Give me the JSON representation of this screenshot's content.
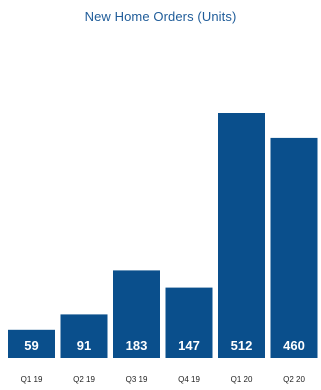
{
  "chart_data": {
    "type": "bar",
    "title": "New Home Orders (Units)",
    "xlabel": "",
    "ylabel": "",
    "categories": [
      "Q1 19",
      "Q2 19",
      "Q3 19",
      "Q4 19",
      "Q1 20",
      "Q2 20"
    ],
    "values": [
      59,
      91,
      183,
      147,
      512,
      460
    ],
    "data_labels": [
      "59",
      "91",
      "183",
      "147",
      "512",
      "460"
    ],
    "ylim": [
      0,
      560
    ],
    "grid": false,
    "legend": "none",
    "bar_color": "#0a4f8c",
    "label_color": "#ffffff",
    "title_color": "#1f5c99"
  }
}
